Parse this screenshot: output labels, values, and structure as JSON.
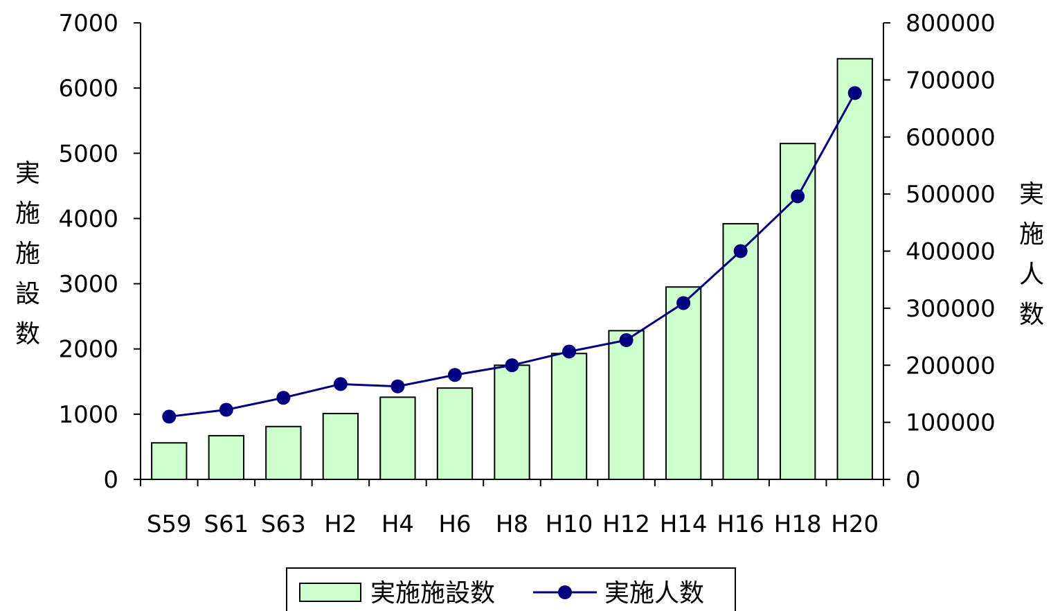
{
  "chart_data": {
    "type": "bar",
    "categories": [
      "S59",
      "S61",
      "S63",
      "H2",
      "H4",
      "H6",
      "H8",
      "H10",
      "H12",
      "H14",
      "H16",
      "H18",
      "H20"
    ],
    "series": [
      {
        "name": "実施施設数",
        "type": "bar",
        "axis": "left",
        "color": "#ccffcc",
        "values": [
          560,
          670,
          810,
          1010,
          1260,
          1400,
          1750,
          1930,
          2280,
          2950,
          3920,
          5150,
          6450
        ]
      },
      {
        "name": "実施人数",
        "type": "line",
        "axis": "right",
        "color": "#000080",
        "values": [
          110000,
          122000,
          143000,
          167000,
          163000,
          183000,
          200000,
          224000,
          244000,
          309000,
          400000,
          496000,
          677000
        ]
      }
    ],
    "ylabel_left": "実施施設数",
    "ylabel_right": "実施人数",
    "ylim_left": [
      0,
      7000
    ],
    "ylim_right": [
      0,
      800000
    ],
    "yticks_left": [
      "0",
      "1000",
      "2000",
      "3000",
      "4000",
      "5000",
      "6000",
      "7000"
    ],
    "yticks_right": [
      "0",
      "100000",
      "200000",
      "300000",
      "400000",
      "500000",
      "600000",
      "700000",
      "800000"
    ],
    "grid": false,
    "legend_position": "bottom"
  }
}
